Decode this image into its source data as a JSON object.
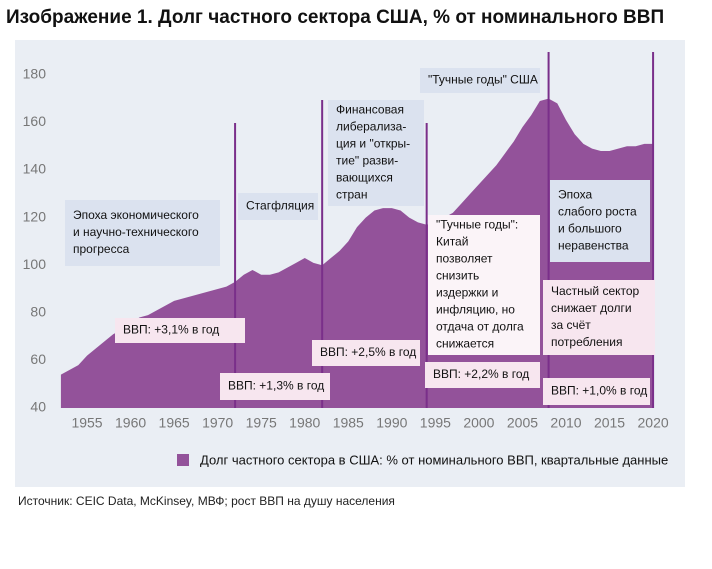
{
  "chart_data": {
    "type": "area",
    "title": "Изображение 1. Долг частного сектора США, % от номинального ВВП",
    "source": "Источник: CEIC Data, McKinsey, МВФ; рост ВВП на душу населения",
    "x": [
      1952,
      1953,
      1954,
      1955,
      1956,
      1957,
      1958,
      1959,
      1960,
      1961,
      1962,
      1963,
      1964,
      1965,
      1966,
      1967,
      1968,
      1969,
      1970,
      1971,
      1972,
      1973,
      1974,
      1975,
      1976,
      1977,
      1978,
      1979,
      1980,
      1981,
      1982,
      1983,
      1984,
      1985,
      1986,
      1987,
      1988,
      1989,
      1990,
      1991,
      1992,
      1993,
      1994,
      1995,
      1996,
      1997,
      1998,
      1999,
      2000,
      2001,
      2002,
      2003,
      2004,
      2005,
      2006,
      2007,
      2008,
      2009,
      2010,
      2011,
      2012,
      2013,
      2014,
      2015,
      2016,
      2017,
      2018,
      2019,
      2020
    ],
    "series": [
      {
        "name": "Долг частного сектора в США: % от номинального ВВП, квартальные данные",
        "color": "#93529a",
        "values": [
          54,
          56,
          58,
          62,
          65,
          68,
          71,
          73,
          75,
          78,
          79,
          81,
          83,
          85,
          86,
          87,
          88,
          89,
          90,
          91,
          93,
          96,
          98,
          96,
          96,
          97,
          99,
          101,
          103,
          101,
          100,
          103,
          106,
          110,
          116,
          120,
          123,
          124,
          124,
          123,
          120,
          118,
          117,
          118,
          120,
          122,
          126,
          130,
          134,
          138,
          142,
          147,
          152,
          158,
          163,
          169,
          170,
          168,
          161,
          155,
          151,
          149,
          148,
          148,
          149,
          150,
          150,
          151,
          151
        ]
      }
    ],
    "xlim": [
      1950,
      2022
    ],
    "xticks": [
      1955,
      1960,
      1965,
      1970,
      1975,
      1980,
      1985,
      1990,
      1995,
      2000,
      2005,
      2010,
      2015,
      2020
    ],
    "ylim": [
      40,
      190
    ],
    "yticks": [
      40,
      60,
      80,
      100,
      120,
      140,
      160,
      180
    ],
    "dividers": [
      1972,
      1982,
      1994,
      2008,
      2020
    ],
    "annotations": [
      {
        "lines": [
          "Эпоха экономического",
          "и научно-технического",
          "прогресса"
        ]
      },
      {
        "lines": [
          "Стагфляция"
        ]
      },
      {
        "lines": [
          "Финансовая",
          "либерализа-",
          "ция и \"откры-",
          "тие\" разви-",
          "вающихся",
          "стран"
        ]
      },
      {
        "lines": [
          "\"Тучные годы\" США"
        ]
      },
      {
        "lines": [
          "\"Тучные годы\":",
          "Китай",
          "позволяет",
          "снизить",
          "издержки и",
          "инфляцию, но",
          "отдача от долга",
          "снижается"
        ]
      },
      {
        "lines": [
          "Эпоха",
          "слабого роста",
          "и большого",
          "неравенства"
        ]
      },
      {
        "lines": [
          "Частный сектор",
          "снижает долги",
          "за счёт",
          "потребления"
        ]
      },
      {
        "lines": [
          "ВВП: +3,1% в год"
        ]
      },
      {
        "lines": [
          "ВВП: +1,3% в год"
        ]
      },
      {
        "lines": [
          "ВВП: +2,5% в год"
        ]
      },
      {
        "lines": [
          "ВВП: +2,2% в год"
        ]
      },
      {
        "lines": [
          "ВВП: +1,0% в год"
        ]
      }
    ]
  }
}
